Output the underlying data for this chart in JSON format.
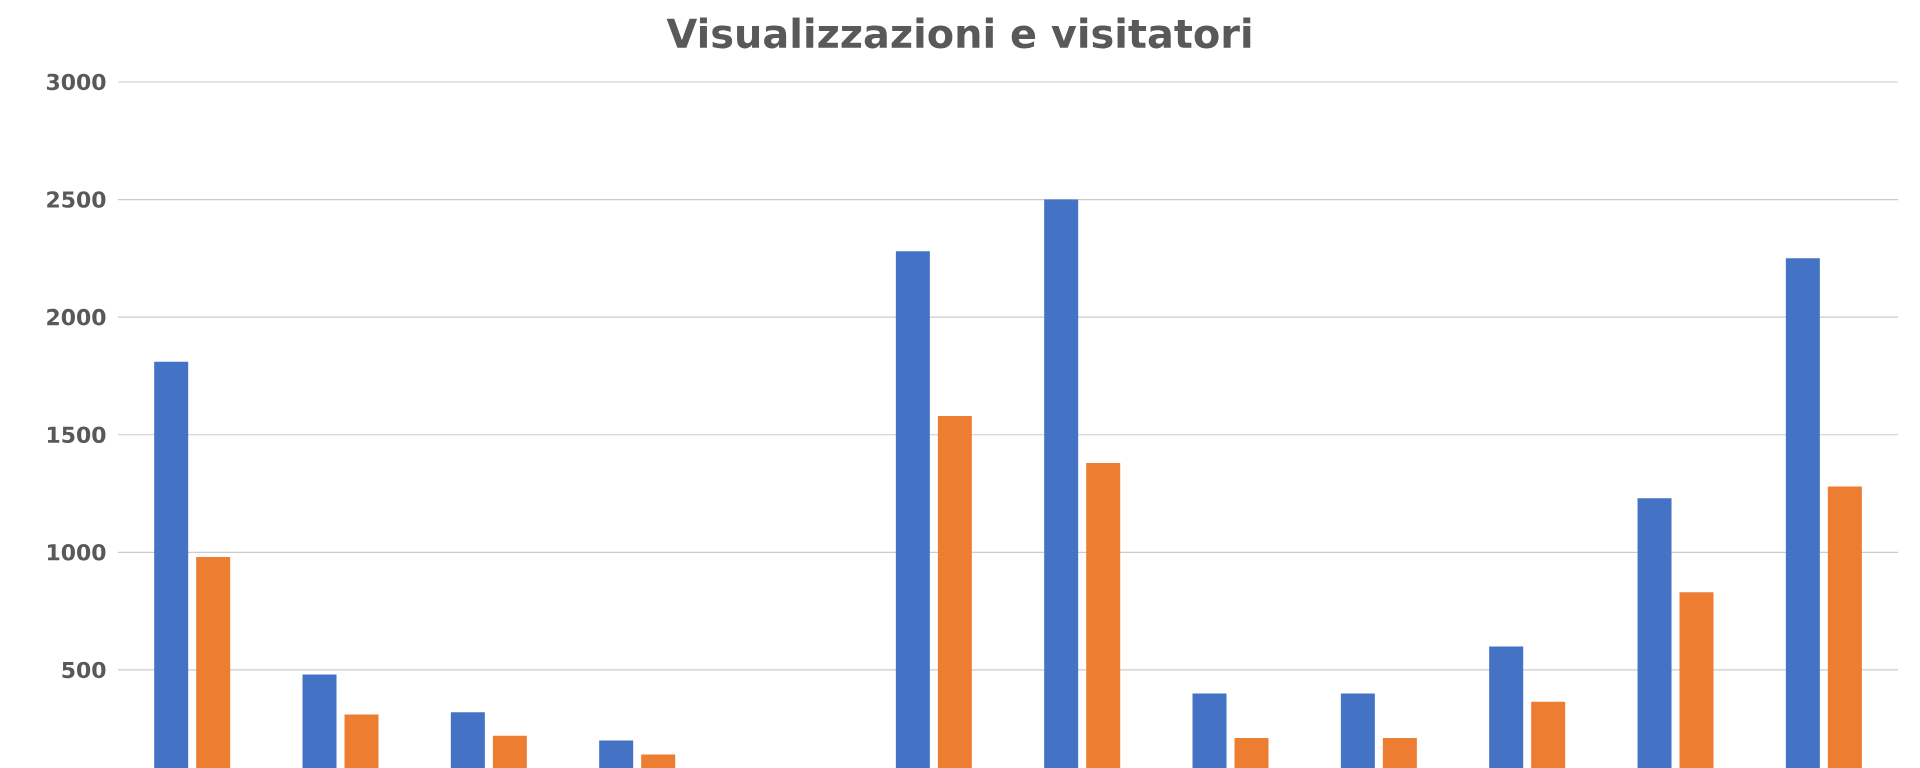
{
  "chart_data": {
    "type": "bar",
    "title": "Visualizzazioni e visitatori",
    "categories": [
      null,
      null,
      null,
      null,
      null,
      null,
      null,
      null,
      null,
      null,
      null,
      null
    ],
    "series": [
      {
        "color": "#4472c4",
        "values": [
          1810,
          480,
          320,
          200,
          null,
          2280,
          2500,
          400,
          400,
          600,
          1230,
          2250
        ]
      },
      {
        "color": "#ed7d31",
        "values": [
          980,
          310,
          220,
          140,
          null,
          1580,
          1380,
          210,
          210,
          365,
          830,
          1280
        ]
      }
    ],
    "ylim": [
      83,
      3000
    ],
    "yticks": [
      500,
      1000,
      1500,
      2000,
      2500,
      3000
    ],
    "grid": "y",
    "legend": false,
    "tick_labels": "y"
  }
}
